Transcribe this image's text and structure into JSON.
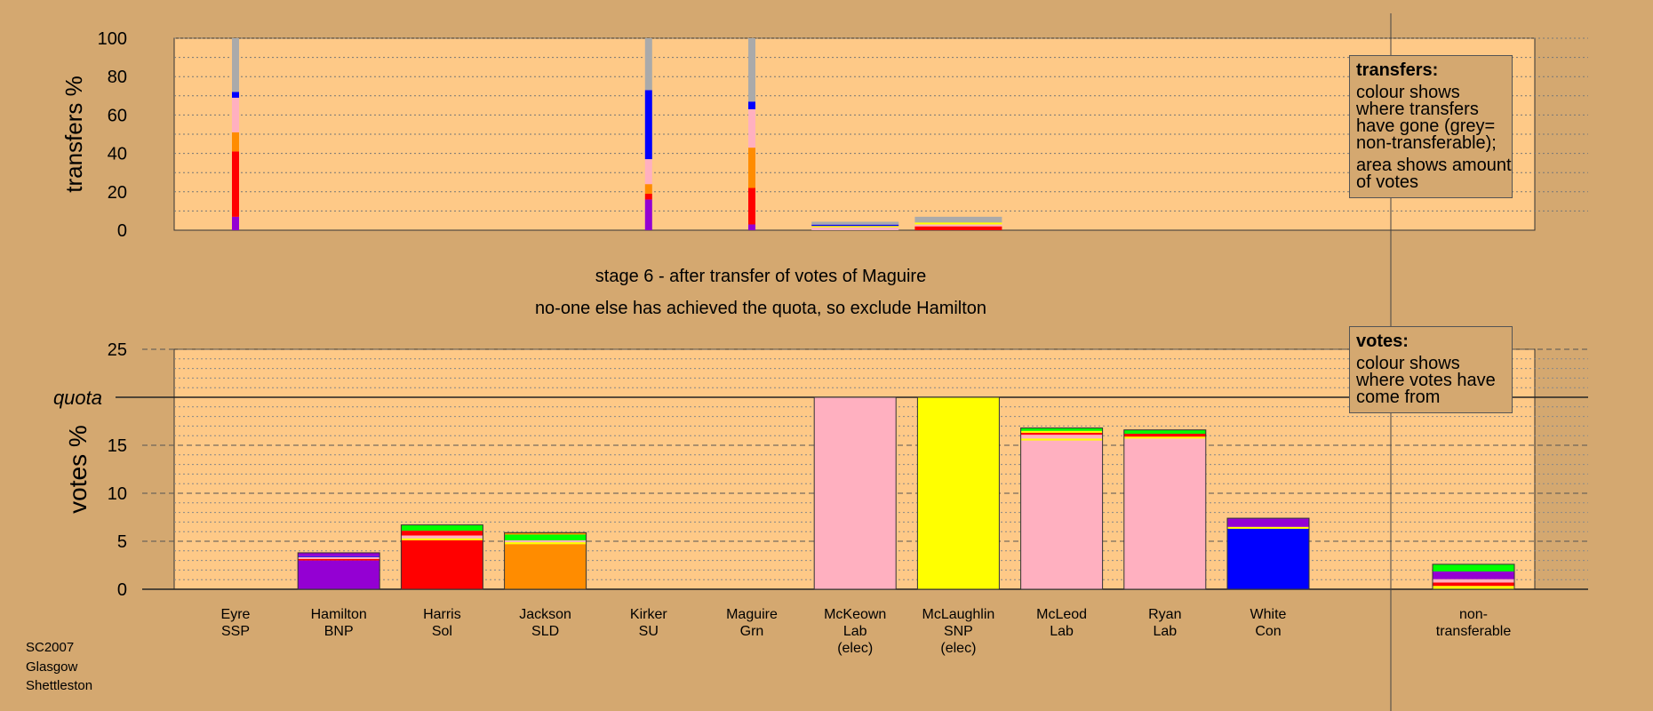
{
  "chart_data": {
    "type": "bar",
    "stage_caption": "stage 6 - after transfer of votes of Maguire",
    "status_caption": "no-one else has achieved the quota, so exclude Hamilton",
    "candidates": [
      {
        "name": "Eyre",
        "party": "SSP",
        "note": ""
      },
      {
        "name": "Hamilton",
        "party": "BNP",
        "note": ""
      },
      {
        "name": "Harris",
        "party": "Sol",
        "note": ""
      },
      {
        "name": "Jackson",
        "party": "SLD",
        "note": ""
      },
      {
        "name": "Kirker",
        "party": "SU",
        "note": ""
      },
      {
        "name": "Maguire",
        "party": "Grn",
        "note": ""
      },
      {
        "name": "McKeown",
        "party": "Lab",
        "note": "(elec)"
      },
      {
        "name": "McLaughlin",
        "party": "SNP",
        "note": "(elec)"
      },
      {
        "name": "McLeod",
        "party": "Lab",
        "note": ""
      },
      {
        "name": "Ryan",
        "party": "Lab",
        "note": ""
      },
      {
        "name": "White",
        "party": "Con",
        "note": ""
      }
    ],
    "nontransferable_label": [
      "non-",
      "transferable"
    ],
    "party_colors": {
      "SSP": "#ff0000",
      "BNP": "#9400d3",
      "Sol": "#ff0000",
      "SLD": "#ff8c00",
      "SU": "#ff7f7f",
      "Grn": "#00ff00",
      "Lab": "#ffb0c0",
      "SNP": "#ffff00",
      "Con": "#0000ff",
      "nontransferable": "#aaaaaa"
    },
    "transfers_chart": {
      "ylabel": "transfers %",
      "ylim": [
        0,
        100
      ],
      "ticks": [
        0,
        20,
        40,
        60,
        80,
        100
      ],
      "columns": [
        {
          "candidate_index": 0,
          "segments": [
            {
              "party": "BNP",
              "value": 7
            },
            {
              "party": "Sol",
              "value": 34
            },
            {
              "party": "SLD",
              "value": 10
            },
            {
              "party": "Lab",
              "value": 18
            },
            {
              "party": "Con",
              "value": 3
            },
            {
              "party": "nontransferable",
              "value": 28
            }
          ]
        },
        {
          "candidate_index": 4,
          "segments": [
            {
              "party": "BNP",
              "value": 16
            },
            {
              "party": "Sol",
              "value": 3
            },
            {
              "party": "SLD",
              "value": 5
            },
            {
              "party": "Lab",
              "value": 13
            },
            {
              "party": "Con",
              "value": 36
            },
            {
              "party": "nontransferable",
              "value": 27
            }
          ]
        },
        {
          "candidate_index": 5,
          "segments": [
            {
              "party": "BNP",
              "value": 3
            },
            {
              "party": "Sol",
              "value": 19
            },
            {
              "party": "SLD",
              "value": 21
            },
            {
              "party": "Lab",
              "value": 20
            },
            {
              "party": "Con",
              "value": 4
            },
            {
              "party": "nontransferable",
              "value": 33
            }
          ]
        }
      ],
      "legend": {
        "title": "transfers:",
        "lines": [
          "colour shows where transfers have gone (grey= non-transferable);",
          "area shows amount of votes"
        ]
      }
    },
    "votes_chart": {
      "ylabel": "votes %",
      "ylim": [
        0,
        25
      ],
      "ticks": [
        0,
        5,
        10,
        15,
        20,
        25
      ],
      "quota": 20,
      "quota_label": "quota",
      "bars": [
        {
          "candidate_index": 0,
          "segments": []
        },
        {
          "candidate_index": 1,
          "segments": [
            {
              "party": "BNP",
              "value": 3.0
            },
            {
              "party": "Sol",
              "value": 0.15
            },
            {
              "party": "Lab",
              "value": 0.2
            },
            {
              "party": "Con",
              "value": 0.1
            },
            {
              "party": "BNP",
              "value": 0.35
            }
          ]
        },
        {
          "candidate_index": 2,
          "segments": [
            {
              "party": "Sol",
              "value": 5.1
            },
            {
              "party": "SNP",
              "value": 0.2
            },
            {
              "party": "Lab",
              "value": 0.3
            },
            {
              "party": "Sol",
              "value": 0.5
            },
            {
              "party": "Grn",
              "value": 0.6
            }
          ]
        },
        {
          "candidate_index": 3,
          "segments": [
            {
              "party": "SLD",
              "value": 4.7
            },
            {
              "party": "SNP",
              "value": 0.2
            },
            {
              "party": "Lab",
              "value": 0.2
            },
            {
              "party": "Grn",
              "value": 0.6
            },
            {
              "party": "SLD",
              "value": 0.2
            }
          ]
        },
        {
          "candidate_index": 4,
          "segments": []
        },
        {
          "candidate_index": 5,
          "segments": []
        },
        {
          "candidate_index": 6,
          "segments": [
            {
              "party": "Lab",
              "value": 20
            }
          ]
        },
        {
          "candidate_index": 7,
          "segments": [
            {
              "party": "SNP",
              "value": 20
            }
          ]
        },
        {
          "candidate_index": 8,
          "segments": [
            {
              "party": "Lab",
              "value": 15.5
            },
            {
              "party": "SNP",
              "value": 0.2
            },
            {
              "party": "Lab",
              "value": 0.4
            },
            {
              "party": "Sol",
              "value": 0.2
            },
            {
              "party": "SNP",
              "value": 0.2
            },
            {
              "party": "Grn",
              "value": 0.3
            }
          ]
        },
        {
          "candidate_index": 9,
          "segments": [
            {
              "party": "Lab",
              "value": 15.7
            },
            {
              "party": "SNP",
              "value": 0.2
            },
            {
              "party": "Sol",
              "value": 0.3
            },
            {
              "party": "Grn",
              "value": 0.4
            }
          ]
        },
        {
          "candidate_index": 10,
          "segments": [
            {
              "party": "Con",
              "value": 6.3
            },
            {
              "party": "SNP",
              "value": 0.2
            },
            {
              "party": "BNP",
              "value": 0.9
            }
          ]
        }
      ],
      "nontransferable_bar": {
        "segments": [
          {
            "party": "SNP",
            "value": 0.35
          },
          {
            "party": "Sol",
            "value": 0.35
          },
          {
            "party": "Lab",
            "value": 0.35
          },
          {
            "party": "BNP",
            "value": 0.8
          },
          {
            "party": "Grn",
            "value": 0.75
          }
        ]
      },
      "legend": {
        "title": "votes:",
        "lines": [
          "colour shows where votes have come from"
        ]
      }
    }
  },
  "footer": {
    "lines": [
      "SC2007",
      "Glasgow",
      "Shettleston"
    ]
  }
}
